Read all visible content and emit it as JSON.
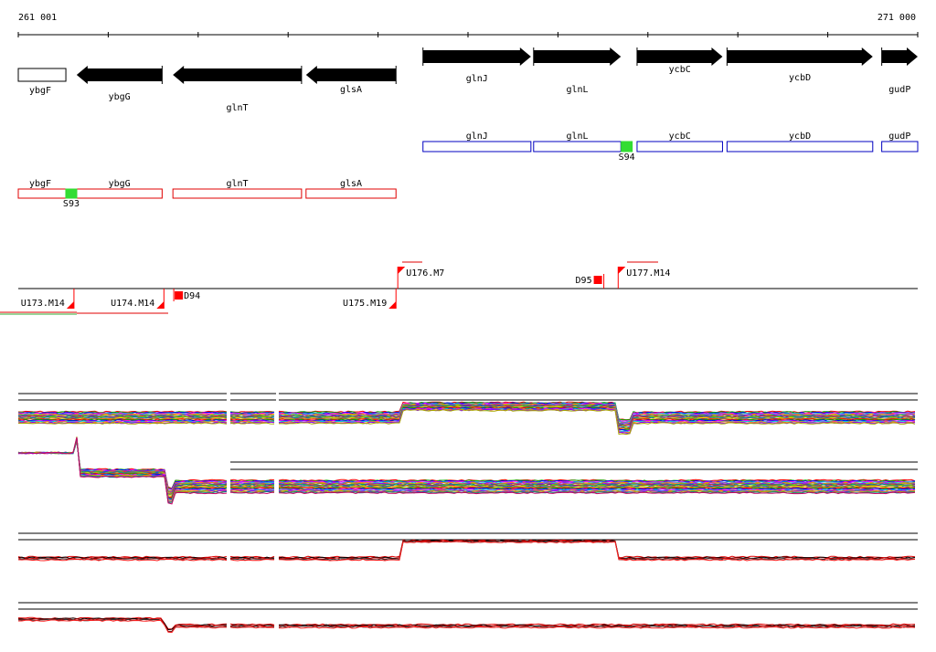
{
  "ruler": {
    "start_label": "261 001",
    "end_label": "271 000",
    "start_bp": 261001,
    "end_bp": 271000
  },
  "colors": {
    "gene_fill": "#000000",
    "operon_reverse": "#e00000",
    "operon_forward": "#0000c0",
    "promoter_site": "#33dd33",
    "tu_marker": "#ff0000",
    "track_line": "#000000"
  },
  "genes": [
    {
      "name": "ybgF",
      "strand": "-",
      "start": 261001,
      "end": 261530,
      "style": "outline"
    },
    {
      "name": "ybgG",
      "strand": "-",
      "start": 261650,
      "end": 262600
    },
    {
      "name": "glnT",
      "strand": "-",
      "start": 262720,
      "end": 264150
    },
    {
      "name": "glsA",
      "strand": "-",
      "start": 264200,
      "end": 265200
    },
    {
      "name": "glnJ",
      "strand": "+",
      "start": 265500,
      "end": 266700
    },
    {
      "name": "glnL",
      "strand": "+",
      "start": 266730,
      "end": 267700
    },
    {
      "name": "ycbC",
      "strand": "+",
      "start": 267880,
      "end": 268830
    },
    {
      "name": "ycbD",
      "strand": "+",
      "start": 268880,
      "end": 270500
    },
    {
      "name": "gudP",
      "strand": "+",
      "start": 270600,
      "end": 271000
    }
  ],
  "operons_forward": [
    {
      "name": "glnJ",
      "start": 265500,
      "end": 266700
    },
    {
      "name": "glnL",
      "start": 266730,
      "end": 267700
    },
    {
      "name": "ycbC",
      "start": 267880,
      "end": 268830
    },
    {
      "name": "ycbD",
      "start": 268880,
      "end": 270500
    },
    {
      "name": "gudP",
      "start": 270600,
      "end": 271000
    }
  ],
  "operons_reverse": [
    {
      "name": "ybgF",
      "start": 261001,
      "end": 261650
    },
    {
      "name": "ybgG",
      "start": 261650,
      "end": 262600
    },
    {
      "name": "glnT",
      "start": 262720,
      "end": 264150
    },
    {
      "name": "glsA",
      "start": 264200,
      "end": 265200
    }
  ],
  "promoter_sites": [
    {
      "name": "S93",
      "pos": 261590,
      "strand": "-"
    },
    {
      "name": "S94",
      "pos": 267765,
      "strand": "+"
    }
  ],
  "transcription_units": [
    {
      "name": "U173.M14",
      "pos": 261620,
      "strand": "-"
    },
    {
      "name": "U174.M14",
      "pos": 262620,
      "strand": "-"
    },
    {
      "name": "U175.M19",
      "pos": 265200,
      "strand": "-"
    },
    {
      "name": "U176.M7",
      "pos": 265220,
      "strand": "+"
    },
    {
      "name": "U177.M14",
      "pos": 267670,
      "strand": "+"
    }
  ],
  "terminator_sites": [
    {
      "name": "D94",
      "pos": 262760,
      "strand": "-"
    },
    {
      "name": "D95",
      "pos": 267480,
      "strand": "+"
    }
  ]
}
